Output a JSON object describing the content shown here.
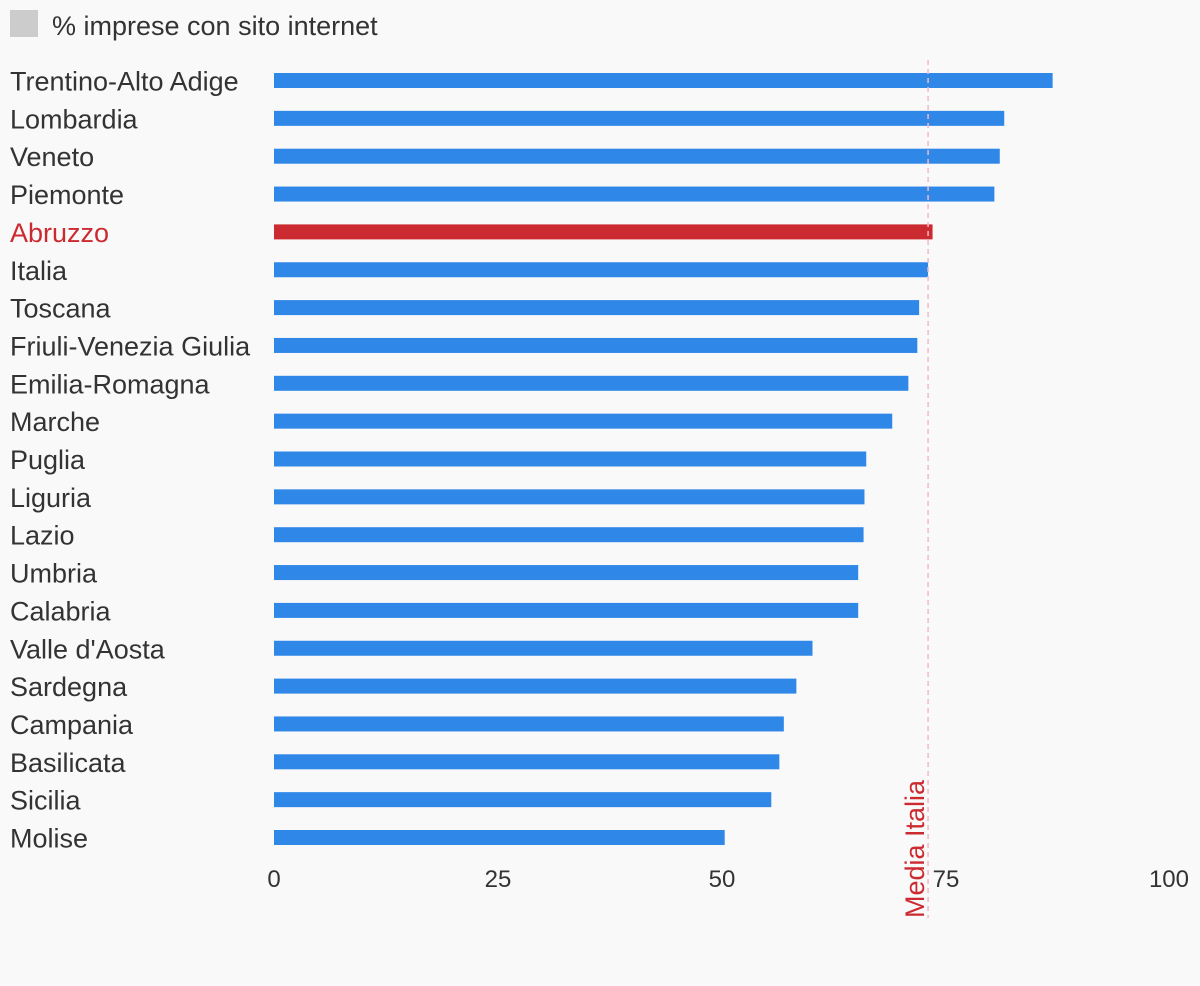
{
  "chart_data": {
    "type": "bar",
    "orientation": "horizontal",
    "legend": {
      "label": "% imprese con sito internet",
      "swatch_color": "#cccccc",
      "placement": "top-left"
    },
    "categories": [
      "Trentino-Alto Adige",
      "Lombardia",
      "Veneto",
      "Piemonte",
      "Abruzzo",
      "Italia",
      "Toscana",
      "Friuli-Venezia Giulia",
      "Emilia-Romagna",
      "Marche",
      "Puglia",
      "Liguria",
      "Lazio",
      "Umbria",
      "Calabria",
      "Valle d'Aosta",
      "Sardegna",
      "Campania",
      "Basilicata",
      "Sicilia",
      "Molise"
    ],
    "series": [
      {
        "name": "% imprese con sito internet",
        "values": [
          86.9,
          81.5,
          81.0,
          80.4,
          73.5,
          73.0,
          72.0,
          71.8,
          70.8,
          69.0,
          66.1,
          65.9,
          65.8,
          65.2,
          65.2,
          60.1,
          58.3,
          56.9,
          56.4,
          55.5,
          50.3
        ]
      }
    ],
    "highlight": {
      "category": "Abruzzo",
      "color": "#cc2a31"
    },
    "bar_color": "#2f87e8",
    "reference_line": {
      "label": "Media Italia",
      "value": 73.0,
      "color": "#cc2a31",
      "line_color": "#f4b8c4",
      "style": "dashed"
    },
    "x_ticks": [
      0,
      25,
      50,
      75,
      100
    ],
    "xlim": [
      0,
      100
    ],
    "grid": false
  }
}
